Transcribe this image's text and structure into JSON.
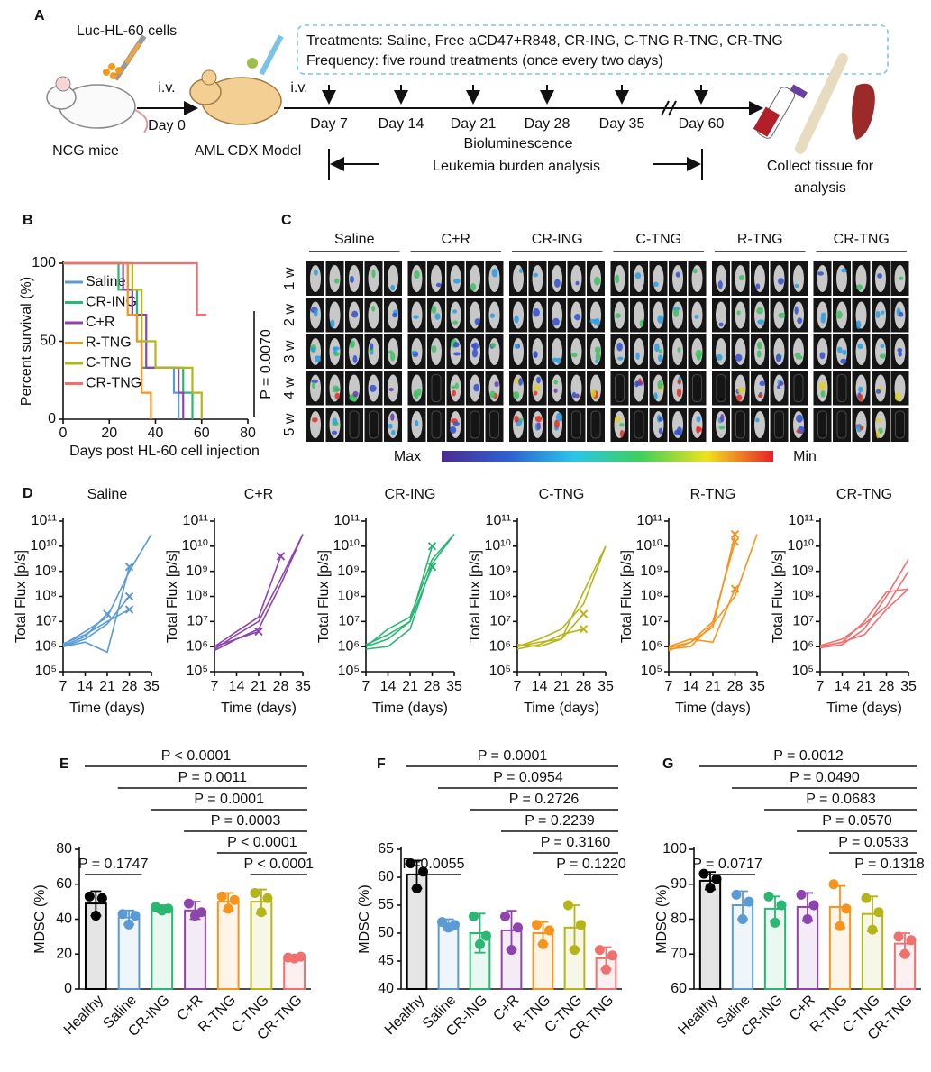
{
  "panel_labels": [
    "A",
    "B",
    "C",
    "D",
    "E",
    "F",
    "G"
  ],
  "schematic": {
    "cell_line": "Luc-HL-60 cells",
    "injection_1": "i.v.",
    "day_0": "Day 0",
    "mice": "NCG mice",
    "model": "AML CDX Model",
    "injection_2": "i.v.",
    "timeline_days": [
      "Day 7",
      "Day 14",
      "Day 21",
      "Day 28",
      "Day 35",
      "Day 60"
    ],
    "treatments": "Treatments: Saline, Free aCD47+R848, CR-ING, C-TNG R-TNG, CR-TNG",
    "frequency": "Frequency: five round treatments (once every two days)",
    "imaging": "Bioluminescence",
    "analysis": "Leukemia burden analysis",
    "collect": [
      "Collect tissue for",
      "analysis"
    ]
  },
  "imaging": {
    "groups": [
      "Saline",
      "C+R",
      "CR-ING",
      "C-TNG",
      "R-TNG",
      "CR-TNG"
    ],
    "weeks": [
      "1 w",
      "2 w",
      "3 w",
      "4 w",
      "5 w"
    ],
    "scale_max": "Max",
    "scale_min": "Min"
  },
  "chart_data": [
    {
      "type": "step",
      "x_label": "Days post HL-60 cell injection",
      "y_label": "Percent survival (%)",
      "xlim": [
        0,
        80
      ],
      "xticks": [
        0,
        20,
        40,
        60,
        80
      ],
      "ylim": [
        0,
        100
      ],
      "yticks": [
        0,
        50,
        100
      ],
      "legend": "left",
      "annotations": [
        "P = 0.0070"
      ],
      "series": [
        {
          "name": "Saline",
          "color": "#5b9bd5",
          "x": [
            0,
            28,
            32,
            34,
            48,
            50
          ],
          "values": [
            100,
            83,
            67,
            33,
            17,
            0
          ]
        },
        {
          "name": "CR-ING",
          "color": "#2bb673",
          "x": [
            0,
            24,
            32,
            34,
            52,
            56
          ],
          "values": [
            100,
            83,
            50,
            33,
            17,
            0
          ]
        },
        {
          "name": "C+R",
          "color": "#8e44ad",
          "x": [
            0,
            26,
            30,
            36,
            50,
            52
          ],
          "values": [
            100,
            83,
            67,
            33,
            17,
            0
          ]
        },
        {
          "name": "R-TNG",
          "color": "#f7941d",
          "x": [
            0,
            28,
            32,
            34,
            38
          ],
          "values": [
            100,
            67,
            50,
            17,
            0
          ]
        },
        {
          "name": "C-TNG",
          "color": "#b5b51a",
          "x": [
            0,
            30,
            34,
            40,
            56,
            60
          ],
          "values": [
            100,
            83,
            50,
            33,
            17,
            0
          ]
        },
        {
          "name": "CR-TNG",
          "color": "#f07070",
          "x": [
            0,
            58,
            62
          ],
          "values": [
            100,
            67,
            67
          ]
        }
      ]
    },
    {
      "type": "line",
      "title": "Saline",
      "color": "#5b9bd5",
      "x_label": "Time (days)",
      "y_label": "Total Flux [p/s]",
      "log_scale": true,
      "x": [
        7,
        14,
        21,
        28,
        35
      ],
      "xlim": [
        7,
        35
      ],
      "xticks": [
        7,
        14,
        21,
        28,
        35
      ],
      "ylim": [
        100000,
        100000000000
      ],
      "yticks": [
        {
          "value": 100000,
          "label": "10⁵"
        },
        {
          "value": 1000000,
          "label": "10⁶"
        },
        {
          "value": 10000000,
          "label": "10⁷"
        },
        {
          "value": 100000000,
          "label": "10⁸"
        },
        {
          "value": 1000000000,
          "label": "10⁹"
        },
        {
          "value": 10000000000,
          "label": "10¹⁰"
        },
        {
          "value": 100000000000,
          "label": "10¹¹"
        }
      ],
      "series": [
        {
          "values": [
            1200000,
            4000000,
            15000000,
            1000000000,
            30000000000
          ]
        },
        {
          "values": [
            1000000,
            2000000,
            8000000,
            100000000,
            null
          ]
        },
        {
          "values": [
            1300000,
            3000000,
            10000000,
            30000000,
            null
          ]
        },
        {
          "values": [
            1000000,
            1500000,
            600000,
            1500000000,
            null
          ]
        },
        {
          "values": [
            1100000,
            2500000,
            20000000,
            null,
            null
          ]
        }
      ]
    },
    {
      "type": "line",
      "title": "C+R",
      "color": "#8e44ad",
      "x_label": "Time (days)",
      "y_label": "Total Flux [p/s]",
      "log_scale": true,
      "x": [
        7,
        14,
        21,
        28,
        35
      ],
      "xlim": [
        7,
        35
      ],
      "xticks": [
        7,
        14,
        21,
        28,
        35
      ],
      "ylim": [
        100000,
        100000000000
      ],
      "yticks": [
        {
          "value": 100000,
          "label": "10⁵"
        },
        {
          "value": 1000000,
          "label": "10⁶"
        },
        {
          "value": 10000000,
          "label": "10⁷"
        },
        {
          "value": 100000000,
          "label": "10⁸"
        },
        {
          "value": 1000000000,
          "label": "10⁹"
        },
        {
          "value": 10000000000,
          "label": "10¹⁰"
        },
        {
          "value": 100000000000,
          "label": "10¹¹"
        }
      ],
      "series": [
        {
          "values": [
            1000000,
            2000000,
            5000000,
            300000000,
            30000000000
          ]
        },
        {
          "values": [
            800000,
            3000000,
            10000000,
            500000000,
            30000000000
          ]
        },
        {
          "values": [
            1000000,
            4000000,
            15000000,
            4000000000,
            null
          ]
        },
        {
          "values": [
            700000,
            2000000,
            4000000,
            null,
            null
          ]
        }
      ]
    },
    {
      "type": "line",
      "title": "CR-ING",
      "color": "#2bb673",
      "x_label": "Time (days)",
      "y_label": "Total Flux [p/s]",
      "log_scale": true,
      "x": [
        7,
        14,
        21,
        28,
        35
      ],
      "xlim": [
        7,
        35
      ],
      "xticks": [
        7,
        14,
        21,
        28,
        35
      ],
      "ylim": [
        100000,
        100000000000
      ],
      "yticks": [
        {
          "value": 100000,
          "label": "10⁵"
        },
        {
          "value": 1000000,
          "label": "10⁶"
        },
        {
          "value": 10000000,
          "label": "10⁷"
        },
        {
          "value": 100000000,
          "label": "10⁸"
        },
        {
          "value": 1000000000,
          "label": "10⁹"
        },
        {
          "value": 10000000000,
          "label": "10¹⁰"
        },
        {
          "value": 100000000000,
          "label": "10¹¹"
        }
      ],
      "series": [
        {
          "values": [
            1000000,
            2000000,
            10000000,
            10000000000,
            null
          ]
        },
        {
          "values": [
            1200000,
            3000000,
            10000000,
            1500000000,
            null
          ]
        },
        {
          "values": [
            800000,
            1000000,
            5000000,
            2000000000,
            30000000000
          ]
        },
        {
          "values": [
            1000000,
            5000000,
            15000000,
            3000000000,
            30000000000
          ]
        }
      ]
    },
    {
      "type": "line",
      "title": "C-TNG",
      "color": "#b5b51a",
      "x_label": "Time (days)",
      "y_label": "Total Flux [p/s]",
      "log_scale": true,
      "x": [
        7,
        14,
        21,
        28,
        35
      ],
      "xlim": [
        7,
        35
      ],
      "xticks": [
        7,
        14,
        21,
        28,
        35
      ],
      "ylim": [
        100000,
        100000000000
      ],
      "yticks": [
        {
          "value": 100000,
          "label": "10⁵"
        },
        {
          "value": 1000000,
          "label": "10⁶"
        },
        {
          "value": 10000000,
          "label": "10⁷"
        },
        {
          "value": 100000000,
          "label": "10⁸"
        },
        {
          "value": 1000000000,
          "label": "10⁹"
        },
        {
          "value": 10000000000,
          "label": "10¹⁰"
        },
        {
          "value": 100000000000,
          "label": "10¹¹"
        }
      ],
      "series": [
        {
          "values": [
            1000000,
            1500000,
            2000000,
            150000000,
            10000000000
          ]
        },
        {
          "values": [
            800000,
            1200000,
            3000000,
            5000000,
            null
          ]
        },
        {
          "values": [
            1000000,
            2000000,
            5000000,
            50000000,
            10000000000
          ]
        },
        {
          "values": [
            1200000,
            1000000,
            2000000,
            20000000,
            null
          ]
        }
      ]
    },
    {
      "type": "line",
      "title": "R-TNG",
      "color": "#f7941d",
      "x_label": "Time (days)",
      "y_label": "Total Flux [p/s]",
      "log_scale": true,
      "x": [
        7,
        14,
        21,
        28,
        35
      ],
      "xlim": [
        7,
        35
      ],
      "xticks": [
        7,
        14,
        21,
        28,
        35
      ],
      "ylim": [
        100000,
        100000000000
      ],
      "yticks": [
        {
          "value": 100000,
          "label": "10⁵"
        },
        {
          "value": 1000000,
          "label": "10⁶"
        },
        {
          "value": 10000000,
          "label": "10⁷"
        },
        {
          "value": 100000000,
          "label": "10⁸"
        },
        {
          "value": 1000000000,
          "label": "10⁹"
        },
        {
          "value": 10000000000,
          "label": "10¹⁰"
        },
        {
          "value": 100000000000,
          "label": "10¹¹"
        }
      ],
      "series": [
        {
          "values": [
            700000,
            1500000,
            6000000,
            30000000000,
            null
          ]
        },
        {
          "values": [
            1000000,
            2000000,
            1500000,
            200000000,
            null
          ]
        },
        {
          "values": [
            800000,
            1000000,
            8000000,
            100000000,
            30000000000
          ]
        },
        {
          "values": [
            900000,
            1500000,
            10000000,
            15000000000,
            null
          ]
        }
      ]
    },
    {
      "type": "line",
      "title": "CR-TNG",
      "color": "#f07070",
      "x_label": "Time (days)",
      "y_label": "Total Flux [p/s]",
      "log_scale": true,
      "x": [
        7,
        14,
        21,
        28,
        35
      ],
      "xlim": [
        7,
        35
      ],
      "xticks": [
        7,
        14,
        21,
        28,
        35
      ],
      "ylim": [
        100000,
        100000000000
      ],
      "yticks": [
        {
          "value": 100000,
          "label": "10⁵"
        },
        {
          "value": 1000000,
          "label": "10⁶"
        },
        {
          "value": 10000000,
          "label": "10⁷"
        },
        {
          "value": 100000000,
          "label": "10⁸"
        },
        {
          "value": 1000000000,
          "label": "10⁹"
        },
        {
          "value": 10000000000,
          "label": "10¹⁰"
        },
        {
          "value": 100000000000,
          "label": "10¹¹"
        }
      ],
      "series": [
        {
          "values": [
            1000000,
            1500000,
            10000000,
            150000000,
            200000000
          ]
        },
        {
          "values": [
            900000,
            1200000,
            5000000,
            100000000,
            3000000000
          ]
        },
        {
          "values": [
            1100000,
            2000000,
            8000000,
            40000000,
            1000000000
          ]
        },
        {
          "values": [
            1000000,
            1500000,
            3000000,
            30000000,
            200000000
          ]
        }
      ]
    },
    {
      "type": "bar",
      "y_label": "MDSC (%)",
      "categories": [
        "Healthy",
        "Saline",
        "CR-ING",
        "C+R",
        "R-TNG",
        "C-TNG",
        "CR-TNG"
      ],
      "colors": [
        "#000000",
        "#5b9bd5",
        "#2bb673",
        "#8e44ad",
        "#f7941d",
        "#b5b51a",
        "#f07070"
      ],
      "values": [
        49,
        41,
        46,
        45,
        50,
        50,
        18
      ],
      "errors": [
        7,
        4,
        2,
        5,
        5,
        7,
        1
      ],
      "points": [
        [
          53,
          42,
          52
        ],
        [
          43,
          37,
          42
        ],
        [
          47,
          45,
          46
        ],
        [
          49,
          42,
          44
        ],
        [
          53,
          46,
          51
        ],
        [
          55,
          44,
          52
        ],
        [
          18,
          17.5,
          18.5
        ]
      ],
      "ylim": [
        0,
        80
      ],
      "yticks": [
        0,
        20,
        40,
        60,
        80
      ],
      "annotations": [
        {
          "text": "P < 0.0001",
          "pair": [
            "Healthy",
            "CR-TNG"
          ]
        },
        {
          "text": "P = 0.0011",
          "pair": [
            "Saline",
            "CR-TNG"
          ]
        },
        {
          "text": "P = 0.0001",
          "pair": [
            "CR-ING",
            "CR-TNG"
          ]
        },
        {
          "text": "P = 0.0003",
          "pair": [
            "C+R",
            "CR-TNG"
          ]
        },
        {
          "text": "P < 0.0001",
          "pair": [
            "R-TNG",
            "CR-TNG"
          ]
        },
        {
          "text": "P < 0.0001",
          "pair": [
            "C-TNG",
            "CR-TNG"
          ]
        },
        {
          "text": "P = 0.1747",
          "pair": [
            "Healthy",
            "Saline"
          ]
        }
      ]
    },
    {
      "type": "bar",
      "y_label": "MDSC (%)",
      "categories": [
        "Healthy",
        "Saline",
        "CR-ING",
        "C+R",
        "R-TNG",
        "C-TNG",
        "CR-TNG"
      ],
      "colors": [
        "#000000",
        "#5b9bd5",
        "#2bb673",
        "#8e44ad",
        "#f7941d",
        "#b5b51a",
        "#f07070"
      ],
      "values": [
        60.5,
        51.5,
        50,
        50.5,
        50,
        51,
        45.5
      ],
      "errors": [
        2.5,
        1,
        3.5,
        3.5,
        2,
        4,
        2
      ],
      "points": [
        [
          62.5,
          58,
          61
        ],
        [
          52,
          51,
          51.5
        ],
        [
          53,
          48,
          49.5
        ],
        [
          53,
          47,
          51
        ],
        [
          51.5,
          48,
          50.5
        ],
        [
          55,
          47,
          51.5
        ],
        [
          47,
          43.5,
          46
        ]
      ],
      "ylim": [
        40,
        65
      ],
      "yticks": [
        40,
        45,
        50,
        55,
        60,
        65
      ],
      "annotations": [
        {
          "text": "P = 0.0001",
          "pair": [
            "Healthy",
            "CR-TNG"
          ]
        },
        {
          "text": "P = 0.0954",
          "pair": [
            "Saline",
            "CR-TNG"
          ]
        },
        {
          "text": "P = 0.2726",
          "pair": [
            "CR-ING",
            "CR-TNG"
          ]
        },
        {
          "text": "P = 0.2239",
          "pair": [
            "C+R",
            "CR-TNG"
          ]
        },
        {
          "text": "P = 0.3160",
          "pair": [
            "R-TNG",
            "CR-TNG"
          ]
        },
        {
          "text": "P = 0.1220",
          "pair": [
            "C-TNG",
            "CR-TNG"
          ]
        },
        {
          "text": "P=0.0055",
          "pair": [
            "Healthy",
            "Saline"
          ]
        }
      ]
    },
    {
      "type": "bar",
      "y_label": "MDSC (%)",
      "categories": [
        "Healthy",
        "Saline",
        "CR-ING",
        "C+R",
        "R-TNG",
        "C-TNG",
        "CR-TNG"
      ],
      "colors": [
        "#000000",
        "#5b9bd5",
        "#2bb673",
        "#8e44ad",
        "#f7941d",
        "#b5b51a",
        "#f07070"
      ],
      "values": [
        91,
        84,
        83,
        83.5,
        83.5,
        81.5,
        73
      ],
      "errors": [
        2.5,
        4,
        3.5,
        4,
        6,
        5,
        3
      ],
      "points": [
        [
          93,
          89,
          91.5
        ],
        [
          87,
          80,
          85
        ],
        [
          86.5,
          79,
          84
        ],
        [
          87,
          80,
          84
        ],
        [
          90,
          78,
          83
        ],
        [
          86,
          77,
          82
        ],
        [
          75,
          70,
          74
        ]
      ],
      "ylim": [
        60,
        100
      ],
      "yticks": [
        60,
        70,
        80,
        90,
        100
      ],
      "annotations": [
        {
          "text": "P = 0.0012",
          "pair": [
            "Healthy",
            "CR-TNG"
          ]
        },
        {
          "text": "P = 0.0490",
          "pair": [
            "Saline",
            "CR-TNG"
          ]
        },
        {
          "text": "P = 0.0683",
          "pair": [
            "CR-ING",
            "CR-TNG"
          ]
        },
        {
          "text": "P = 0.0570",
          "pair": [
            "C+R",
            "CR-TNG"
          ]
        },
        {
          "text": "P = 0.0533",
          "pair": [
            "R-TNG",
            "CR-TNG"
          ]
        },
        {
          "text": "P = 0.1318",
          "pair": [
            "C-TNG",
            "CR-TNG"
          ]
        },
        {
          "text": "P = 0.0717",
          "pair": [
            "Healthy",
            "Saline"
          ]
        }
      ]
    }
  ]
}
